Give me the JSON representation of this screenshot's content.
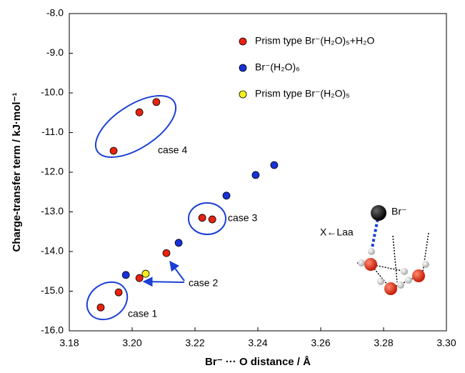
{
  "chart_data": {
    "type": "scatter",
    "x_label": "Br⁻ ··· O distance / Å",
    "y_label": "Charge-transfer term / kJ·mol⁻¹",
    "xlim": [
      3.18,
      3.3
    ],
    "ylim": [
      -16,
      -8
    ],
    "xticks": [
      3.18,
      {
        "value": 3.2,
        "label": "3.20"
      },
      3.22,
      3.24,
      3.26,
      3.28,
      {
        "value": 3.3,
        "label": "3.30"
      }
    ],
    "yticks": [
      {
        "value": -16,
        "label": "-16.0"
      },
      {
        "value": -15,
        "label": "-15.0"
      },
      {
        "value": -14,
        "label": "-14.0"
      },
      {
        "value": -13,
        "label": "-13.0"
      },
      {
        "value": -12,
        "label": "-12.0"
      },
      {
        "value": -11,
        "label": "-11.0"
      },
      {
        "value": -10,
        "label": "-10.0"
      },
      {
        "value": -9,
        "label": "-9.0"
      },
      {
        "value": -8,
        "label": "-8.0"
      }
    ],
    "legend": "top-right",
    "series": [
      {
        "name": "Prism type Br⁻(H₂O)₅+H₂O",
        "color": "#e8220f",
        "x": [
          3.1941,
          3.2023,
          3.2077,
          3.19,
          3.1957,
          3.2023,
          3.2109,
          3.2223,
          3.2255
        ],
        "values": [
          -11.46,
          -10.49,
          -10.23,
          -15.41,
          -15.03,
          -14.67,
          -14.04,
          -13.15,
          -13.19
        ]
      },
      {
        "name": "Br⁻(H₂O)₆",
        "color": "#1631d8",
        "x": [
          3.198,
          3.2148,
          3.23,
          3.2393,
          3.2452
        ],
        "values": [
          -14.59,
          -13.78,
          -12.59,
          -12.07,
          -11.82
        ]
      },
      {
        "name": "Prism type Br⁻(H₂O)₅",
        "color": "#f4f01a",
        "x": [
          3.2043
        ],
        "values": [
          -14.56
        ]
      }
    ],
    "annotations": [
      "case 4",
      "case 3",
      "case 2",
      "case 1",
      "Br⁻",
      "X←Laa"
    ]
  }
}
